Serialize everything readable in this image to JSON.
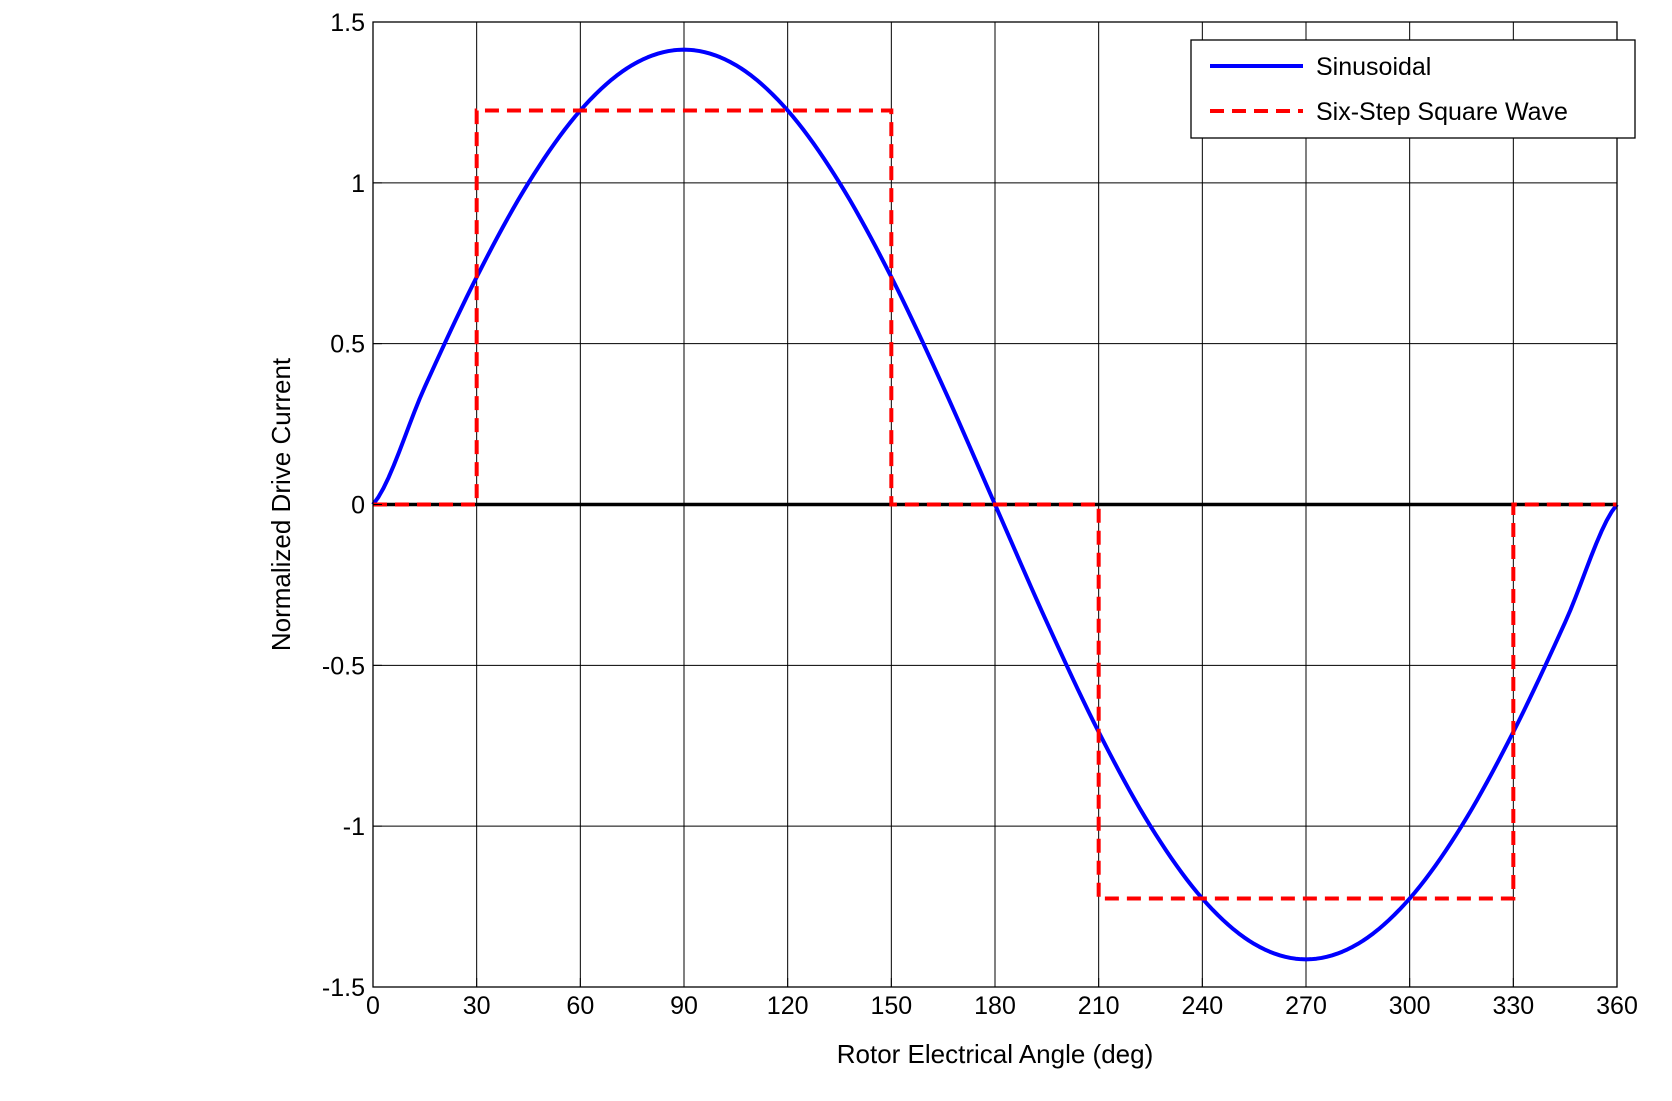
{
  "chart_data": {
    "type": "line",
    "xlabel": "Rotor Electrical Angle (deg)",
    "ylabel": "Normalized Drive Current",
    "xlim": [
      0,
      360
    ],
    "ylim": [
      -1.5,
      1.5
    ],
    "x_ticks": [
      0,
      30,
      60,
      90,
      120,
      150,
      180,
      210,
      240,
      270,
      300,
      330,
      360
    ],
    "y_ticks": [
      -1.5,
      -1,
      -0.5,
      0,
      0.5,
      1,
      1.5
    ],
    "x_tick_labels": [
      "0",
      "30",
      "60",
      "90",
      "120",
      "150",
      "180",
      "210",
      "240",
      "270",
      "300",
      "330",
      "360"
    ],
    "y_tick_labels": [
      "-1.5",
      "-1",
      "-0.5",
      "0",
      "0.5",
      "1",
      "1.5"
    ],
    "grid": true,
    "legend_position": "top-right",
    "series": [
      {
        "name": "Sinusoidal",
        "style": "solid",
        "color": "#0000ff",
        "x": [
          0,
          15,
          30,
          45,
          60,
          75,
          90,
          105,
          120,
          135,
          150,
          165,
          180,
          195,
          210,
          225,
          240,
          255,
          270,
          285,
          300,
          315,
          330,
          345,
          360
        ],
        "y": [
          0,
          0.366,
          0.707,
          1.0,
          1.225,
          1.366,
          1.414,
          1.366,
          1.225,
          1.0,
          0.707,
          0.366,
          0,
          -0.366,
          -0.707,
          -1.0,
          -1.225,
          -1.366,
          -1.414,
          -1.366,
          -1.225,
          -1.0,
          -0.707,
          -0.366,
          0
        ]
      },
      {
        "name": "Six-Step Square Wave",
        "style": "dashed",
        "color": "#ff0000",
        "x": [
          0,
          30,
          30,
          150,
          150,
          210,
          210,
          330,
          330,
          360
        ],
        "y": [
          0,
          0,
          1.225,
          1.225,
          0,
          0,
          -1.225,
          -1.225,
          0,
          0
        ]
      }
    ]
  }
}
